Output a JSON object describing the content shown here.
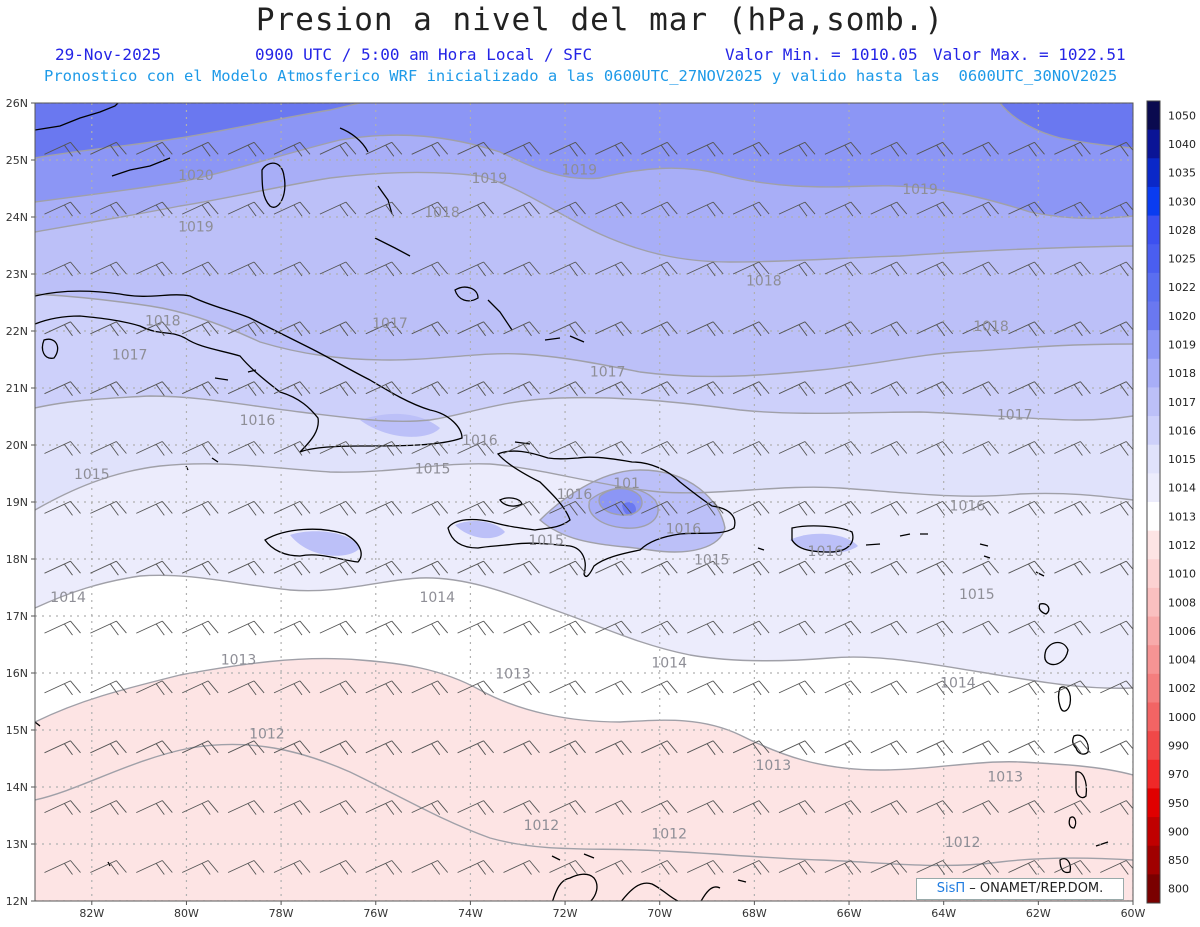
{
  "header": {
    "title": "Presion a nivel del mar (hPa,somb.)",
    "date": "29-Nov-2025",
    "time": "0900 UTC / 5:00 am Hora Local / SFC",
    "min_label": "Valor Min. = 1010.05",
    "max_label": "Valor Max. = 1022.51",
    "subtitle": "Pronostico con el Modelo Atmosferico WRF inicializado a las 0600UTC_27NOV2025 y valido hasta las  0600UTC_30NOV2025"
  },
  "axes": {
    "lat_labels": [
      "26N",
      "25N",
      "24N",
      "23N",
      "22N",
      "21N",
      "20N",
      "19N",
      "18N",
      "17N",
      "16N",
      "15N",
      "14N",
      "13N",
      "12N"
    ],
    "lon_labels": [
      "82W",
      "80W",
      "78W",
      "76W",
      "74W",
      "72W",
      "70W",
      "68W",
      "66W",
      "64W",
      "62W",
      "60W"
    ],
    "lat_range": [
      12,
      26
    ],
    "lon_range": [
      -83.2,
      -60
    ]
  },
  "colorbar": {
    "levels": [
      "1050",
      "1040",
      "1035",
      "1030",
      "1028",
      "1025",
      "1022",
      "1020",
      "1019",
      "1018",
      "1017",
      "1016",
      "1015",
      "1014",
      "1013",
      "1012",
      "1010",
      "1008",
      "1006",
      "1004",
      "1002",
      "1000",
      "990",
      "970",
      "950",
      "900",
      "850",
      "800"
    ],
    "colors": [
      "#0a0a4f",
      "#0a1496",
      "#0a28c8",
      "#0a3cf0",
      "#3c50f0",
      "#4a5ef0",
      "#5a6ef0",
      "#6a78f0",
      "#8c96f5",
      "#a8aef7",
      "#bcc0f8",
      "#cdd0fa",
      "#e0e2fb",
      "#ececfc",
      "#ffffff",
      "#fde4e4",
      "#fcd2d2",
      "#fac0c0",
      "#f8aaaa",
      "#f69494",
      "#f47e7e",
      "#f26464",
      "#f04848",
      "#f02828",
      "#e00000",
      "#c00000",
      "#a00000",
      "#7a0000"
    ]
  },
  "contours": [
    {
      "label": "1020",
      "lon": -79.8,
      "lat": 24.65
    },
    {
      "label": "1019",
      "lon": -71.7,
      "lat": 24.75
    },
    {
      "label": "1019",
      "lon": -73.6,
      "lat": 24.6
    },
    {
      "label": "1019",
      "lon": -79.8,
      "lat": 23.75
    },
    {
      "label": "1019",
      "lon": -64.5,
      "lat": 24.4
    },
    {
      "label": "1018",
      "lon": -74.6,
      "lat": 24.0
    },
    {
      "label": "1018",
      "lon": -67.8,
      "lat": 22.8
    },
    {
      "label": "1018",
      "lon": -63.0,
      "lat": 22.0
    },
    {
      "label": "1018",
      "lon": -80.5,
      "lat": 22.1
    },
    {
      "label": "1017",
      "lon": -75.7,
      "lat": 22.05
    },
    {
      "label": "1017",
      "lon": -81.2,
      "lat": 21.5
    },
    {
      "label": "1017",
      "lon": -71.1,
      "lat": 21.2
    },
    {
      "label": "1017",
      "lon": -62.5,
      "lat": 20.45
    },
    {
      "label": "1016",
      "lon": -78.5,
      "lat": 20.35
    },
    {
      "label": "1016",
      "lon": -73.8,
      "lat": 20.0
    },
    {
      "label": "1016",
      "lon": -71.8,
      "lat": 19.05
    },
    {
      "label": "1016",
      "lon": -69.5,
      "lat": 18.45
    },
    {
      "label": "1016",
      "lon": -66.5,
      "lat": 18.05
    },
    {
      "label": "1016",
      "lon": -63.5,
      "lat": 18.85
    },
    {
      "label": "1015",
      "lon": -82.0,
      "lat": 19.4
    },
    {
      "label": "1015",
      "lon": -74.8,
      "lat": 19.5
    },
    {
      "label": "1015",
      "lon": -72.4,
      "lat": 18.25
    },
    {
      "label": "1015",
      "lon": -68.9,
      "lat": 17.9
    },
    {
      "label": "1015",
      "lon": -63.3,
      "lat": 17.3
    },
    {
      "label": "1014",
      "lon": -82.5,
      "lat": 17.25
    },
    {
      "label": "1014",
      "lon": -74.7,
      "lat": 17.25
    },
    {
      "label": "1014",
      "lon": -69.8,
      "lat": 16.1
    },
    {
      "label": "1014",
      "lon": -63.7,
      "lat": 15.75
    },
    {
      "label": "1013",
      "lon": -78.9,
      "lat": 16.15
    },
    {
      "label": "1013",
      "lon": -73.1,
      "lat": 15.9
    },
    {
      "label": "1013",
      "lon": -67.6,
      "lat": 14.3
    },
    {
      "label": "1013",
      "lon": -62.7,
      "lat": 14.1
    },
    {
      "label": "1012",
      "lon": -78.3,
      "lat": 14.85
    },
    {
      "label": "1012",
      "lon": -72.5,
      "lat": 13.25
    },
    {
      "label": "1012",
      "lon": -69.8,
      "lat": 13.1
    },
    {
      "label": "1012",
      "lon": -63.6,
      "lat": 12.95
    },
    {
      "label": "101",
      "lon": -70.7,
      "lat": 19.25
    }
  ],
  "credit": {
    "brand": "SisΠ",
    "text": " – ONAMET/REP.DOM."
  }
}
